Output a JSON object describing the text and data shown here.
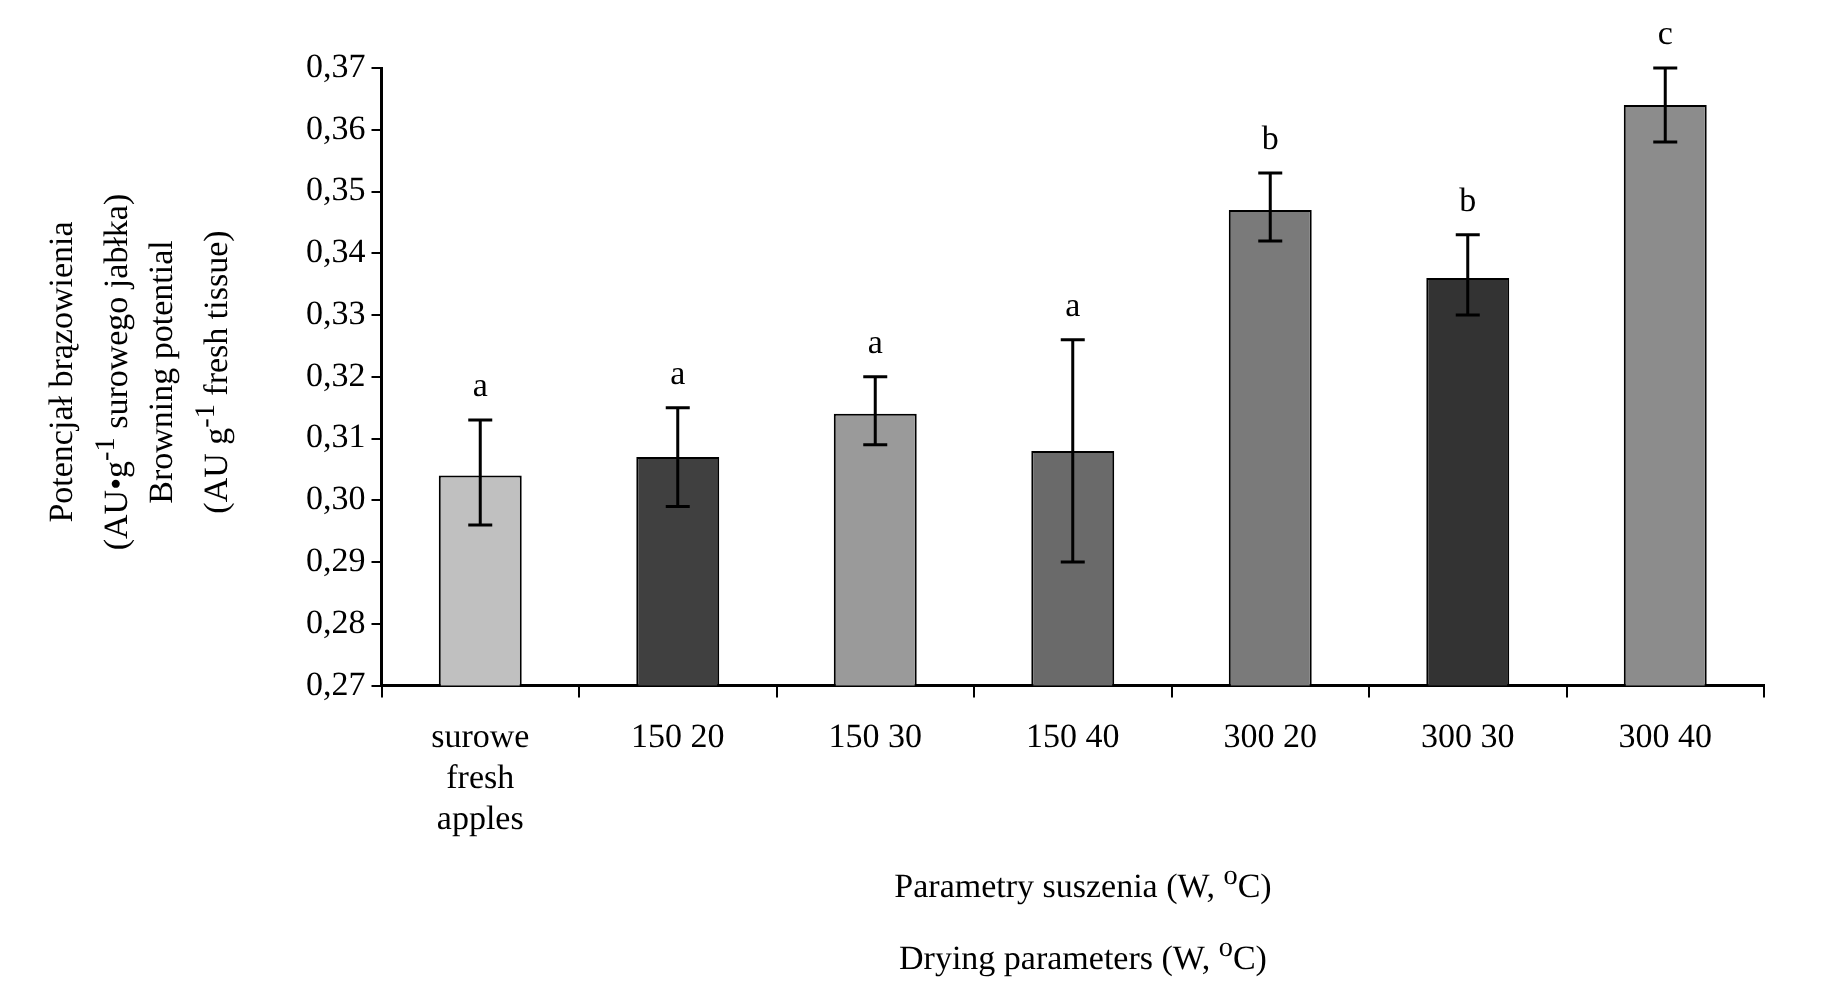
{
  "chart_data": {
    "type": "bar",
    "ylabel": "Potencjał brązowienia\n(AU•g$^{-1}$ surowego jabłka)\nBrowning potential\n(AU g$^{-1}$ fresh tissue)",
    "xlabel": "Parametry suszenia (W, $^{o}$C)\nDrying parameters (W, $^{o}$C)",
    "categories": [
      "surowe\nfresh\napples",
      "150 20",
      "150 30",
      "150 40",
      "300 20",
      "300 30",
      "300 40"
    ],
    "values": [
      0.304,
      0.307,
      0.314,
      0.308,
      0.347,
      0.336,
      0.364
    ],
    "colors": [
      "#c0c0c0",
      "#404040",
      "#9a9a9a",
      "#6a6a6a",
      "#7a7a7a",
      "#333333",
      "#8c8c8c"
    ],
    "errors": [
      [
        0.296,
        0.313
      ],
      [
        0.299,
        0.315
      ],
      [
        0.309,
        0.32
      ],
      [
        0.29,
        0.326
      ],
      [
        0.342,
        0.353
      ],
      [
        0.33,
        0.343
      ],
      [
        0.358,
        0.37
      ]
    ],
    "ylim": [
      0.27,
      0.37
    ],
    "yticks": [
      {
        "value": 0.27,
        "label": "0,27"
      },
      {
        "value": 0.28,
        "label": "0,28"
      },
      {
        "value": 0.29,
        "label": "0,29"
      },
      {
        "value": 0.3,
        "label": "0,30"
      },
      {
        "value": 0.31,
        "label": "0,31"
      },
      {
        "value": 0.32,
        "label": "0,32"
      },
      {
        "value": 0.33,
        "label": "0,33"
      },
      {
        "value": 0.34,
        "label": "0,34"
      },
      {
        "value": 0.35,
        "label": "0,35"
      },
      {
        "value": 0.36,
        "label": "0,36"
      },
      {
        "value": 0.37,
        "label": "0,37"
      }
    ],
    "annotations": [
      {
        "text": "a",
        "x": "surowe\nfresh\napples",
        "y": 0.313
      },
      {
        "text": "a",
        "x": "150 20",
        "y": 0.315
      },
      {
        "text": "a",
        "x": "150 30",
        "y": 0.32
      },
      {
        "text": "a",
        "x": "150 40",
        "y": 0.326
      },
      {
        "text": "b",
        "x": "300 20",
        "y": 0.353
      },
      {
        "text": "b",
        "x": "300 30",
        "y": 0.343
      },
      {
        "text": "c",
        "x": "300 40",
        "y": 0.37
      }
    ],
    "grid": false,
    "legend": false
  }
}
